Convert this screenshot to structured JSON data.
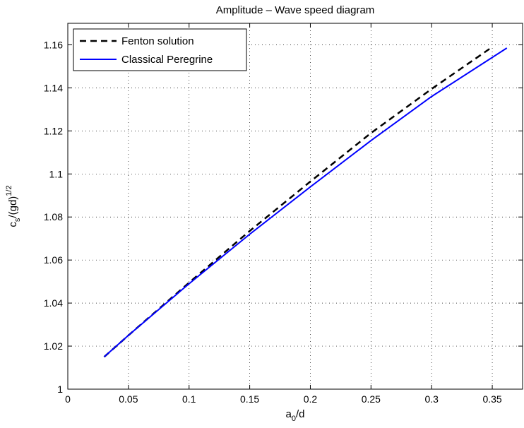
{
  "chart_data": {
    "type": "line",
    "title": "Amplitude – Wave speed diagram",
    "xlabel": {
      "base": "a",
      "sub": "0",
      "rest": "/d"
    },
    "ylabel": {
      "base": "c",
      "sub": "s",
      "rest": "/(gd)",
      "sup": "1/2"
    },
    "xlim": [
      0,
      0.375
    ],
    "ylim": [
      1.0,
      1.17
    ],
    "xticks": [
      0,
      0.05,
      0.1,
      0.15,
      0.2,
      0.25,
      0.3,
      0.35
    ],
    "xtick_labels": [
      "0",
      "0.05",
      "0.1",
      "0.15",
      "0.2",
      "0.25",
      "0.3",
      "0.35"
    ],
    "yticks": [
      1.0,
      1.02,
      1.04,
      1.06,
      1.08,
      1.1,
      1.12,
      1.14,
      1.16
    ],
    "ytick_labels": [
      "1",
      "1.02",
      "1.04",
      "1.06",
      "1.08",
      "1.1",
      "1.12",
      "1.14",
      "1.16"
    ],
    "grid": true,
    "legend_position": "top-left",
    "series": [
      {
        "name": "Fenton solution",
        "style": "dashed",
        "color": "#000000",
        "x": [
          0.03,
          0.05,
          0.1,
          0.15,
          0.2,
          0.25,
          0.3,
          0.35
        ],
        "y": [
          1.015,
          1.025,
          1.0495,
          1.0735,
          1.0965,
          1.119,
          1.1395,
          1.159
        ]
      },
      {
        "name": "Classical Peregrine",
        "style": "solid",
        "color": "#0000ff",
        "x": [
          0.03,
          0.05,
          0.1,
          0.15,
          0.2,
          0.25,
          0.3,
          0.362
        ],
        "y": [
          1.015,
          1.025,
          1.049,
          1.072,
          1.094,
          1.1155,
          1.136,
          1.1585
        ]
      }
    ]
  }
}
